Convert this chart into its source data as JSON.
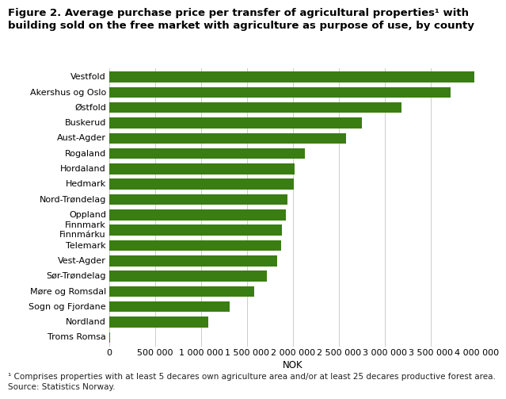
{
  "title": "Figure 2. Average purchase price per transfer of agricultural properties¹ with\nbuilding sold on the free market with agriculture as purpose of use, by county",
  "categories": [
    "Vestfold",
    "Akershus og Oslo",
    "Østfold",
    "Buskerud",
    "Aust-Agder",
    "Rogaland",
    "Hordaland",
    "Hedmark",
    "Nord-Trøndelag",
    "Oppland",
    "Finnmark\nFinnmárku",
    "Telemark",
    "Vest-Agder",
    "Sør-Trøndelag",
    "Møre og Romsdal",
    "Sogn og Fjordane",
    "Nordland",
    "Troms Romsa"
  ],
  "values": [
    3980000,
    3720000,
    3180000,
    2750000,
    2580000,
    2130000,
    2020000,
    2010000,
    1940000,
    1920000,
    1880000,
    1870000,
    1830000,
    1720000,
    1580000,
    1310000,
    1080000,
    10000
  ],
  "bar_color": "#3a7d12",
  "xlabel": "NOK",
  "xlim": [
    0,
    4000000
  ],
  "xtick_values": [
    0,
    500000,
    1000000,
    1500000,
    2000000,
    2500000,
    3000000,
    3500000,
    4000000
  ],
  "xtick_labels": [
    "0",
    "500 000",
    "1 000 000",
    "1 500 000",
    "2 000 000",
    "2 500 000",
    "3 000 000",
    "3 500 000",
    "4 000 000"
  ],
  "footnote1": "¹ Comprises properties with at least 5 decares own agriculture area and/or at least 25 decares productive forest area.",
  "footnote2": "Source: Statistics Norway.",
  "background_color": "#ffffff",
  "grid_color": "#cccccc",
  "title_fontsize": 9.5,
  "tick_fontsize": 8,
  "label_fontsize": 8.5,
  "footnote_fontsize": 7.5
}
